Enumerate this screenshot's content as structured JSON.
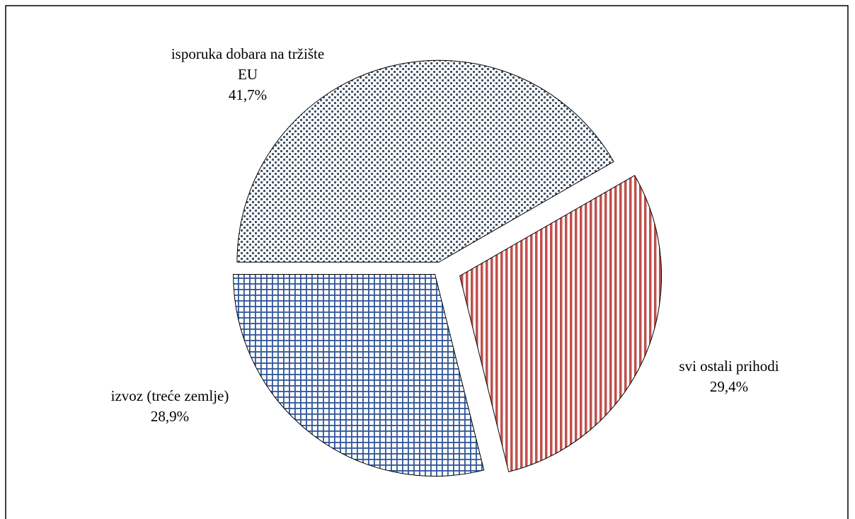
{
  "chart_data": {
    "type": "pie",
    "categories": [
      "isporuka dobara na tržište EU",
      "svi ostali prihodi",
      "izvoz (treće zemlje)"
    ],
    "values": [
      41.7,
      29.4,
      28.9
    ],
    "value_labels": [
      "41,7%",
      "29,4%",
      "28,9%"
    ],
    "colors": [
      "#44546a",
      "#c0504d",
      "#2f5597"
    ]
  }
}
